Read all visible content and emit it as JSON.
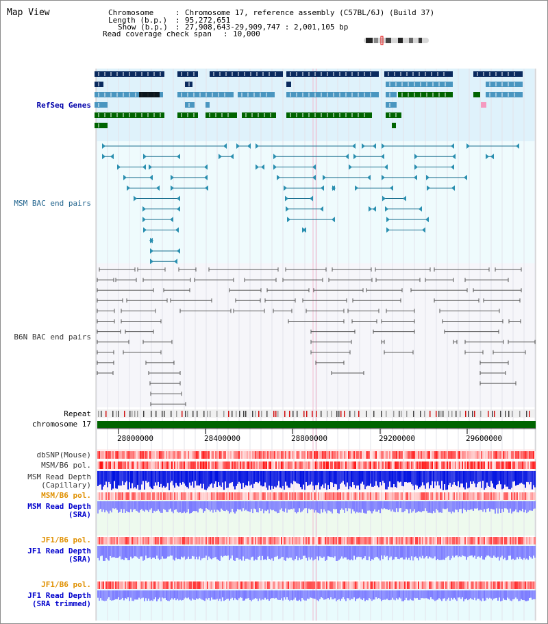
{
  "header": {
    "title": "Map View",
    "chromosome_label": "Chromosome",
    "chromosome_value": "Chromosome 17, reference assembly (C57BL/6J) (Build 37)",
    "length_label": "Length (b.p.)",
    "length_value": "95,272,651",
    "show_label": "Show (b.p.)",
    "show_value": "27,908,643-29,909,747 : 2,001,105 bp",
    "coverage_label": "Read coverage check span",
    "coverage_value": "10,000",
    "separator": ":"
  },
  "tracks": {
    "refseq": {
      "label": "RefSeq Genes",
      "color": "#0000aa"
    },
    "msm_bac": {
      "label": "MSM BAC end pairs",
      "color": "#1a5f8a"
    },
    "b6n_bac": {
      "label": "B6N BAC end pairs",
      "color": "#333333"
    },
    "repeat": {
      "label": "Repeat",
      "color": "#000000"
    },
    "chromosome": {
      "label": "chromosome 17",
      "color": "#000000"
    },
    "dbsnp": {
      "label": "dbSNP(Mouse)",
      "color": "#333333"
    },
    "msm_b6_pol_1": {
      "label": "MSM/B6 pol.",
      "color": "#333333"
    },
    "msm_read_depth_cap": {
      "label": "MSM Read Depth",
      "label2": "(Capillary)",
      "color": "#333333"
    },
    "msm_b6_pol_2": {
      "label": "MSM/B6 pol.",
      "color": "#e09000"
    },
    "msm_read_depth_sra": {
      "label": "MSM Read Depth",
      "label2": "(SRA)",
      "color": "#0000cc"
    },
    "jf1_b6_pol_1": {
      "label": "JF1/B6 pol.",
      "color": "#e09000"
    },
    "jf1_read_depth_sra": {
      "label": "JF1 Read Depth",
      "label2": "(SRA)",
      "color": "#0000cc"
    },
    "jf1_b6_pol_2": {
      "label": "JF1/B6 pol.",
      "color": "#e09000"
    },
    "jf1_read_depth_trim": {
      "label": "JF1 Read Depth",
      "label2": "(SRA trimmed)",
      "color": "#0000cc"
    }
  },
  "axis": {
    "ticks": [
      "28000000",
      "28400000",
      "28800000",
      "29200000",
      "29600000"
    ],
    "start": 27908643,
    "end": 29909747
  },
  "colors": {
    "refseq_bg": "#dff2fb",
    "msm_bg": "#effbfd",
    "b6n_bg": "#f6f6fa",
    "gene_dark": "#0a2a5e",
    "gene_light": "#4a96c0",
    "gene_green": "#006400",
    "chromosome_bar": "#006400",
    "snp_red": "#e83a3a",
    "depth_blue": "#0010e0",
    "sra_blue": "#7a7aff"
  }
}
